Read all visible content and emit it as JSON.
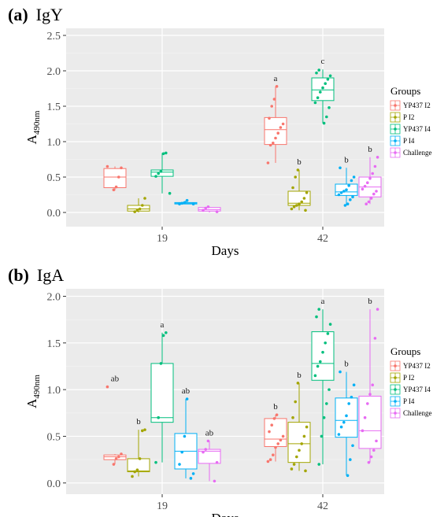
{
  "chart_data": [
    {
      "type": "box",
      "panel": "(a)",
      "title": "IgY",
      "xlabel": "Days",
      "ylabel_main": "A",
      "ylabel_sub": "490nm",
      "ylim": [
        -0.2,
        2.6
      ],
      "yticks": [
        "0.0",
        "0.5",
        "1.0",
        "1.5",
        "2.0",
        "2.5"
      ],
      "categories": [
        "19",
        "42"
      ],
      "legend_title": "Groups",
      "series": [
        {
          "name": "YP437 I2",
          "color": "#F8766D",
          "boxes": {
            "19": {
              "min": 0.31,
              "q1": 0.35,
              "median": 0.5,
              "q3": 0.62,
              "max": 0.65,
              "points": [
                0.65,
                0.63,
                0.5,
                0.36,
                0.32
              ],
              "label": ""
            },
            "42": {
              "min": 0.7,
              "q1": 0.96,
              "median": 1.17,
              "q3": 1.34,
              "max": 1.78,
              "points": [
                1.78,
                1.6,
                1.5,
                1.33,
                1.25,
                1.2,
                1.12,
                1.05,
                0.98,
                0.95,
                0.7
              ],
              "label": "a"
            }
          }
        },
        {
          "name": "P I2",
          "color": "#A3A500",
          "boxes": {
            "19": {
              "min": 0.0,
              "q1": 0.02,
              "median": 0.05,
              "q3": 0.1,
              "max": 0.2,
              "points": [
                0.2,
                0.1,
                0.05,
                0.03,
                0.01
              ],
              "label": ""
            },
            "42": {
              "min": 0.03,
              "q1": 0.1,
              "median": 0.13,
              "q3": 0.3,
              "max": 0.6,
              "points": [
                0.6,
                0.5,
                0.35,
                0.28,
                0.2,
                0.15,
                0.12,
                0.1,
                0.08,
                0.05,
                0.03
              ],
              "label": "b"
            }
          }
        },
        {
          "name": "YP437 I4",
          "color": "#00BF7D",
          "boxes": {
            "19": {
              "min": 0.27,
              "q1": 0.51,
              "median": 0.57,
              "q3": 0.6,
              "max": 0.84,
              "points": [
                0.84,
                0.83,
                0.58,
                0.55,
                0.51,
                0.27
              ],
              "label": ""
            },
            "42": {
              "min": 1.26,
              "q1": 1.58,
              "median": 1.73,
              "q3": 1.9,
              "max": 2.02,
              "points": [
                2.01,
                1.97,
                1.93,
                1.88,
                1.82,
                1.76,
                1.7,
                1.62,
                1.55,
                1.48,
                1.35,
                1.26
              ],
              "label": "c"
            }
          }
        },
        {
          "name": "P I4",
          "color": "#00B0F6",
          "boxes": {
            "19": {
              "min": 0.12,
              "q1": 0.12,
              "median": 0.13,
              "q3": 0.14,
              "max": 0.17,
              "points": [
                0.17,
                0.14,
                0.13,
                0.12,
                0.12
              ],
              "label": ""
            },
            "42": {
              "min": 0.1,
              "q1": 0.24,
              "median": 0.29,
              "q3": 0.4,
              "max": 0.63,
              "points": [
                0.63,
                0.5,
                0.45,
                0.38,
                0.32,
                0.3,
                0.28,
                0.25,
                0.22,
                0.18,
                0.12,
                0.1
              ],
              "label": "b"
            }
          }
        },
        {
          "name": "Challenge",
          "color": "#E76BF3",
          "boxes": {
            "19": {
              "min": 0.0,
              "q1": 0.02,
              "median": 0.04,
              "q3": 0.07,
              "max": 0.08,
              "points": [
                0.08,
                0.06,
                0.03,
                0.01
              ],
              "label": ""
            },
            "42": {
              "min": 0.12,
              "q1": 0.22,
              "median": 0.36,
              "q3": 0.5,
              "max": 0.78,
              "points": [
                0.78,
                0.65,
                0.55,
                0.48,
                0.42,
                0.37,
                0.33,
                0.3,
                0.26,
                0.2,
                0.15,
                0.12
              ],
              "label": "b"
            }
          }
        }
      ]
    },
    {
      "type": "box",
      "panel": "(b)",
      "title": "IgA",
      "xlabel": "Days",
      "ylabel_main": "A",
      "ylabel_sub": "490nm",
      "ylim": [
        -0.12,
        2.08
      ],
      "yticks": [
        "0.0",
        "0.5",
        "1.0",
        "1.5",
        "2.0"
      ],
      "categories": [
        "19",
        "42"
      ],
      "legend_title": "Groups",
      "series": [
        {
          "name": "YP437 I2",
          "color": "#F8766D",
          "boxes": {
            "19": {
              "min": 0.2,
              "q1": 0.25,
              "median": 0.28,
              "q3": 0.3,
              "max": 0.31,
              "points": [
                1.03,
                0.31,
                0.28,
                0.26,
                0.2
              ],
              "label": "ab"
            },
            "42": {
              "min": 0.23,
              "q1": 0.39,
              "median": 0.47,
              "q3": 0.69,
              "max": 0.73,
              "points": [
                0.73,
                0.69,
                0.62,
                0.55,
                0.5,
                0.46,
                0.42,
                0.38,
                0.3,
                0.25,
                0.23
              ],
              "label": "b"
            }
          }
        },
        {
          "name": "P I2",
          "color": "#A3A500",
          "boxes": {
            "19": {
              "min": 0.07,
              "q1": 0.12,
              "median": 0.13,
              "q3": 0.26,
              "max": 0.57,
              "points": [
                0.57,
                0.56,
                0.26,
                0.14,
                0.12,
                0.07
              ],
              "label": "b"
            },
            "42": {
              "min": 0.13,
              "q1": 0.22,
              "median": 0.42,
              "q3": 0.65,
              "max": 1.07,
              "points": [
                1.07,
                0.87,
                0.7,
                0.6,
                0.5,
                0.42,
                0.35,
                0.28,
                0.2,
                0.15,
                0.13
              ],
              "label": "b"
            }
          }
        },
        {
          "name": "YP437 I4",
          "color": "#00BF7D",
          "boxes": {
            "19": {
              "min": 0.22,
              "q1": 0.65,
              "median": 0.7,
              "q3": 1.28,
              "max": 1.61,
              "points": [
                1.61,
                1.58,
                1.28,
                0.7,
                0.22
              ],
              "label": "a"
            },
            "42": {
              "min": 0.2,
              "q1": 1.1,
              "median": 1.28,
              "q3": 1.62,
              "max": 1.86,
              "points": [
                1.86,
                1.78,
                1.7,
                1.6,
                1.5,
                1.4,
                1.3,
                1.25,
                1.15,
                1.0,
                0.85,
                0.7,
                0.5,
                0.2
              ],
              "label": "a"
            }
          }
        },
        {
          "name": "P I4",
          "color": "#00B0F6",
          "boxes": {
            "19": {
              "min": 0.05,
              "q1": 0.15,
              "median": 0.34,
              "q3": 0.53,
              "max": 0.9,
              "points": [
                0.9,
                0.5,
                0.33,
                0.2,
                0.1,
                0.05
              ],
              "label": "ab"
            },
            "42": {
              "min": 0.08,
              "q1": 0.49,
              "median": 0.67,
              "q3": 0.91,
              "max": 1.19,
              "points": [
                1.19,
                1.05,
                0.92,
                0.85,
                0.72,
                0.65,
                0.6,
                0.52,
                0.4,
                0.25,
                0.08
              ],
              "label": "b"
            }
          }
        },
        {
          "name": "Challenge",
          "color": "#E76BF3",
          "boxes": {
            "19": {
              "min": 0.02,
              "q1": 0.21,
              "median": 0.34,
              "q3": 0.36,
              "max": 0.45,
              "points": [
                0.45,
                0.36,
                0.33,
                0.22,
                0.02
              ],
              "label": "ab"
            },
            "42": {
              "min": 0.22,
              "q1": 0.37,
              "median": 0.56,
              "q3": 0.93,
              "max": 1.86,
              "points": [
                1.86,
                1.55,
                1.05,
                0.95,
                0.85,
                0.7,
                0.56,
                0.45,
                0.35,
                0.28,
                0.22
              ],
              "label": "b"
            }
          }
        }
      ]
    }
  ]
}
